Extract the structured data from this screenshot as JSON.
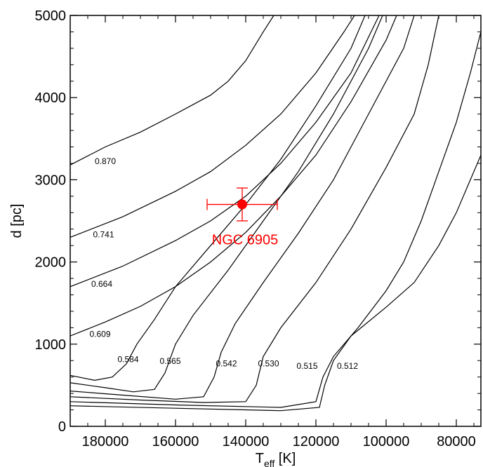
{
  "chart_data": {
    "type": "line",
    "xlabel": "T",
    "xlabel_sub": "eff",
    "xlabel_unit": " [K]",
    "ylabel": "d [pc]",
    "xlim": [
      190000,
      73000
    ],
    "ylim": [
      0,
      5000
    ],
    "x_reversed": true,
    "x_ticks": [
      180000,
      160000,
      140000,
      120000,
      100000,
      80000
    ],
    "x_tick_labels": [
      "180000",
      "160000",
      "140000",
      "120000",
      "100000",
      "80000"
    ],
    "y_ticks": [
      0,
      1000,
      2000,
      3000,
      4000,
      5000
    ],
    "y_tick_labels": [
      "0",
      "1000",
      "2000",
      "3000",
      "4000",
      "5000"
    ],
    "grid": false,
    "line_color": "#000000",
    "series": [
      {
        "name": "0.870",
        "label_at": [
          183000,
          3190
        ],
        "points": [
          [
            190000,
            3180
          ],
          [
            180000,
            3400
          ],
          [
            170000,
            3580
          ],
          [
            160000,
            3800
          ],
          [
            150000,
            4030
          ],
          [
            145000,
            4200
          ],
          [
            140000,
            4450
          ],
          [
            135000,
            4800
          ],
          [
            132000,
            5000
          ]
        ]
      },
      {
        "name": "0.741",
        "label_at": [
          183500,
          2300
        ],
        "points": [
          [
            190000,
            2300
          ],
          [
            175000,
            2550
          ],
          [
            160000,
            2860
          ],
          [
            150000,
            3100
          ],
          [
            140000,
            3420
          ],
          [
            130000,
            3800
          ],
          [
            120000,
            4300
          ],
          [
            112000,
            4800
          ],
          [
            109000,
            5000
          ]
        ]
      },
      {
        "name": "0.664",
        "label_at": [
          184000,
          1700
        ],
        "points": [
          [
            190000,
            1700
          ],
          [
            175000,
            1950
          ],
          [
            160000,
            2260
          ],
          [
            150000,
            2500
          ],
          [
            140000,
            2800
          ],
          [
            130000,
            3200
          ],
          [
            120000,
            3700
          ],
          [
            110000,
            4300
          ],
          [
            102000,
            5000
          ]
        ]
      },
      {
        "name": "0.609",
        "label_at": [
          184500,
          1090
        ],
        "points": [
          [
            190000,
            1100
          ],
          [
            180000,
            1270
          ],
          [
            170000,
            1460
          ],
          [
            160000,
            1700
          ],
          [
            150000,
            2000
          ],
          [
            140000,
            2360
          ],
          [
            130000,
            2800
          ],
          [
            120000,
            3300
          ],
          [
            110000,
            3950
          ],
          [
            100000,
            4700
          ],
          [
            97000,
            5000
          ]
        ]
      },
      {
        "name": "0.584",
        "label_at": [
          176500,
          780
        ],
        "points": [
          [
            190000,
            620
          ],
          [
            183000,
            560
          ],
          [
            178000,
            600
          ],
          [
            174000,
            760
          ],
          [
            171000,
            1000
          ],
          [
            166000,
            1300
          ],
          [
            160000,
            1700
          ],
          [
            150000,
            2200
          ],
          [
            140000,
            2700
          ],
          [
            130000,
            3250
          ],
          [
            120000,
            3900
          ],
          [
            110000,
            4600
          ],
          [
            106000,
            5000
          ]
        ]
      },
      {
        "name": "0.565",
        "label_at": [
          164500,
          760
        ],
        "points": [
          [
            190000,
            530
          ],
          [
            180000,
            470
          ],
          [
            172000,
            420
          ],
          [
            166000,
            450
          ],
          [
            163000,
            650
          ],
          [
            160000,
            1000
          ],
          [
            155000,
            1350
          ],
          [
            145000,
            1900
          ],
          [
            135000,
            2500
          ],
          [
            125000,
            3100
          ],
          [
            115000,
            3800
          ],
          [
            105000,
            4600
          ],
          [
            101000,
            5000
          ]
        ]
      },
      {
        "name": "0.542",
        "label_at": [
          148500,
          730
        ],
        "points": [
          [
            190000,
            430
          ],
          [
            175000,
            380
          ],
          [
            160000,
            330
          ],
          [
            152000,
            360
          ],
          [
            149000,
            600
          ],
          [
            147000,
            900
          ],
          [
            143000,
            1250
          ],
          [
            135000,
            1750
          ],
          [
            125000,
            2350
          ],
          [
            115000,
            3000
          ],
          [
            105000,
            3800
          ],
          [
            95000,
            4600
          ],
          [
            92000,
            5000
          ]
        ]
      },
      {
        "name": "0.530",
        "label_at": [
          136500,
          730
        ],
        "points": [
          [
            190000,
            360
          ],
          [
            170000,
            320
          ],
          [
            152000,
            290
          ],
          [
            140000,
            300
          ],
          [
            137000,
            500
          ],
          [
            135000,
            850
          ],
          [
            130000,
            1200
          ],
          [
            120000,
            1750
          ],
          [
            110000,
            2400
          ],
          [
            100000,
            3150
          ],
          [
            92000,
            3800
          ],
          [
            88000,
            4400
          ],
          [
            85000,
            5000
          ]
        ]
      },
      {
        "name": "0.515",
        "label_at": [
          125500,
          700
        ],
        "points": [
          [
            190000,
            300
          ],
          [
            160000,
            260
          ],
          [
            130000,
            230
          ],
          [
            120000,
            300
          ],
          [
            118000,
            600
          ],
          [
            115000,
            850
          ],
          [
            108000,
            1200
          ],
          [
            100000,
            1650
          ],
          [
            95000,
            2000
          ],
          [
            90000,
            2500
          ],
          [
            85000,
            3100
          ],
          [
            80000,
            3700
          ],
          [
            76000,
            4300
          ],
          [
            73000,
            4800
          ]
        ]
      },
      {
        "name": "0.512",
        "label_at": [
          114000,
          700
        ],
        "points": [
          [
            190000,
            250
          ],
          [
            160000,
            220
          ],
          [
            130000,
            190
          ],
          [
            119000,
            230
          ],
          [
            117500,
            500
          ],
          [
            115000,
            800
          ],
          [
            110000,
            1100
          ],
          [
            100000,
            1450
          ],
          [
            92000,
            1750
          ],
          [
            85000,
            2200
          ],
          [
            80000,
            2600
          ],
          [
            76000,
            3000
          ],
          [
            73000,
            3300
          ]
        ]
      }
    ],
    "error_point": {
      "label": "NGC 6905",
      "x": 141000,
      "y": 2700,
      "x_err": 10000,
      "y_err": 200,
      "color": "#ff0000"
    }
  }
}
